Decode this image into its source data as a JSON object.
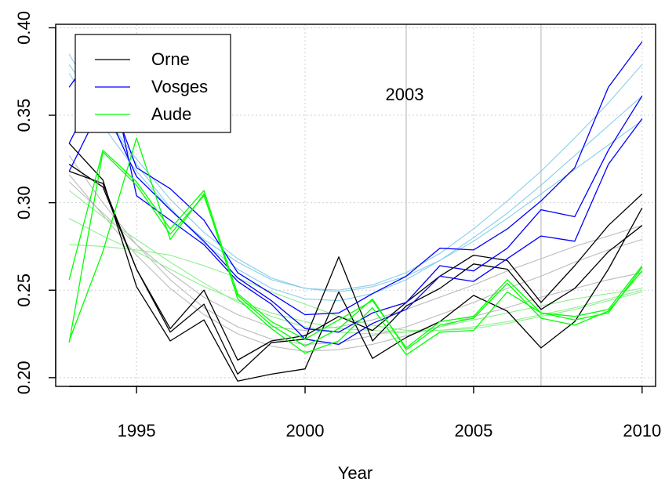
{
  "chart_data": {
    "type": "line",
    "title": "",
    "xlabel": "Year",
    "ylabel": "",
    "xlim": [
      1992.6,
      2010.4
    ],
    "ylim": [
      0.195,
      0.402
    ],
    "x": [
      1993,
      1994,
      1995,
      1996,
      1997,
      1998,
      1999,
      2000,
      2001,
      2002,
      2003,
      2004,
      2005,
      2006,
      2007,
      2008,
      2009,
      2010
    ],
    "x_ticks": [
      1995,
      2000,
      2005,
      2010
    ],
    "x_tick_labels": [
      "1995",
      "2000",
      "2005",
      "2010"
    ],
    "y_ticks": [
      0.2,
      0.25,
      0.3,
      0.35,
      0.4
    ],
    "y_tick_labels": [
      "0.20",
      "0.25",
      "0.30",
      "0.35",
      "0.40"
    ],
    "grid": true,
    "vertical_markers": [
      2003,
      2007
    ],
    "annotation": {
      "text": "2003",
      "x": 2003.5,
      "y": 0.354
    },
    "legend": {
      "placement": "top-left",
      "entries": [
        {
          "name": "Orne",
          "color": "#000000"
        },
        {
          "name": "Vosges",
          "color": "#0000ff"
        },
        {
          "name": "Aude",
          "color": "#00ff00"
        }
      ]
    },
    "series": [
      {
        "name": "Orne",
        "group": "Orne",
        "role": "observed",
        "color": "#000000",
        "values": [
          0.334,
          0.313,
          0.252,
          0.221,
          0.233,
          0.198,
          0.202,
          0.205,
          0.249,
          0.211,
          0.223,
          0.232,
          0.247,
          0.238,
          0.217,
          0.232,
          0.262,
          0.297
        ]
      },
      {
        "name": "Orne",
        "group": "Orne",
        "role": "observed",
        "color": "#000000",
        "values": [
          0.322,
          0.309,
          0.262,
          0.226,
          0.242,
          0.202,
          0.22,
          0.222,
          0.269,
          0.221,
          0.241,
          0.251,
          0.265,
          0.262,
          0.239,
          0.251,
          0.272,
          0.287
        ]
      },
      {
        "name": "Orne",
        "group": "Orne",
        "role": "observed",
        "color": "#000000",
        "values": [
          0.318,
          0.311,
          0.262,
          0.228,
          0.25,
          0.21,
          0.221,
          0.224,
          0.235,
          0.227,
          0.243,
          0.258,
          0.27,
          0.267,
          0.243,
          0.264,
          0.287,
          0.305
        ]
      },
      {
        "name": "Orne",
        "group": "Orne",
        "role": "trend",
        "color": "#bbbbbb",
        "values": [
          0.327,
          0.3,
          0.276,
          0.256,
          0.24,
          0.229,
          0.222,
          0.219,
          0.22,
          0.224,
          0.229,
          0.236,
          0.243,
          0.251,
          0.258,
          0.266,
          0.273,
          0.279
        ]
      },
      {
        "name": "Orne",
        "group": "Orne",
        "role": "trend",
        "color": "#bbbbbb",
        "values": [
          0.316,
          0.293,
          0.27,
          0.251,
          0.236,
          0.225,
          0.218,
          0.215,
          0.216,
          0.219,
          0.224,
          0.229,
          0.235,
          0.24,
          0.246,
          0.251,
          0.256,
          0.26
        ]
      },
      {
        "name": "Orne",
        "group": "Orne",
        "role": "trend",
        "color": "#bbbbbb",
        "values": [
          0.312,
          0.294,
          0.276,
          0.26,
          0.246,
          0.236,
          0.229,
          0.227,
          0.229,
          0.233,
          0.239,
          0.246,
          0.253,
          0.261,
          0.268,
          0.275,
          0.281,
          0.287
        ]
      },
      {
        "name": "Vosges",
        "group": "Vosges",
        "role": "observed",
        "color": "#0000ff",
        "values": [
          0.366,
          0.393,
          0.304,
          0.29,
          0.276,
          0.255,
          0.242,
          0.222,
          0.219,
          0.231,
          0.239,
          0.258,
          0.255,
          0.268,
          0.281,
          0.278,
          0.322,
          0.348
        ]
      },
      {
        "name": "Vosges",
        "group": "Vosges",
        "role": "observed",
        "color": "#0000ff",
        "values": [
          0.318,
          0.357,
          0.315,
          0.296,
          0.278,
          0.257,
          0.244,
          0.228,
          0.226,
          0.237,
          0.243,
          0.264,
          0.261,
          0.274,
          0.296,
          0.292,
          0.33,
          0.361
        ]
      },
      {
        "name": "Vosges",
        "group": "Vosges",
        "role": "observed",
        "color": "#0000ff",
        "values": [
          0.334,
          0.372,
          0.32,
          0.308,
          0.29,
          0.26,
          0.248,
          0.236,
          0.237,
          0.248,
          0.258,
          0.274,
          0.273,
          0.285,
          0.301,
          0.32,
          0.366,
          0.392
        ]
      },
      {
        "name": "Vosges",
        "group": "Vosges",
        "role": "trend",
        "color": "#87ceeb",
        "values": [
          0.385,
          0.351,
          0.322,
          0.297,
          0.277,
          0.262,
          0.251,
          0.245,
          0.244,
          0.248,
          0.256,
          0.267,
          0.28,
          0.294,
          0.31,
          0.327,
          0.344,
          0.361
        ]
      },
      {
        "name": "Vosges",
        "group": "Vosges",
        "role": "trend",
        "color": "#87ceeb",
        "values": [
          0.374,
          0.344,
          0.318,
          0.296,
          0.279,
          0.266,
          0.256,
          0.251,
          0.249,
          0.252,
          0.258,
          0.267,
          0.278,
          0.291,
          0.305,
          0.319,
          0.333,
          0.347
        ]
      },
      {
        "name": "Vosges",
        "group": "Vosges",
        "role": "trend",
        "color": "#87ceeb",
        "values": [
          0.379,
          0.351,
          0.325,
          0.302,
          0.283,
          0.268,
          0.257,
          0.251,
          0.25,
          0.253,
          0.26,
          0.271,
          0.285,
          0.301,
          0.318,
          0.337,
          0.357,
          0.379
        ]
      },
      {
        "name": "Aude",
        "group": "Aude",
        "role": "observed",
        "color": "#00ff00",
        "values": [
          0.221,
          0.272,
          0.337,
          0.279,
          0.305,
          0.245,
          0.228,
          0.214,
          0.221,
          0.24,
          0.213,
          0.226,
          0.227,
          0.249,
          0.237,
          0.233,
          0.237,
          0.263
        ]
      },
      {
        "name": "Aude",
        "group": "Aude",
        "role": "observed",
        "color": "#00ff00",
        "values": [
          0.256,
          0.33,
          0.312,
          0.285,
          0.307,
          0.247,
          0.23,
          0.218,
          0.228,
          0.245,
          0.216,
          0.23,
          0.234,
          0.254,
          0.234,
          0.23,
          0.238,
          0.261
        ]
      },
      {
        "name": "Aude",
        "group": "Aude",
        "role": "observed",
        "color": "#00ff00",
        "values": [
          0.22,
          0.329,
          0.31,
          0.282,
          0.304,
          0.248,
          0.232,
          0.222,
          0.233,
          0.244,
          0.217,
          0.232,
          0.235,
          0.256,
          0.237,
          0.235,
          0.239,
          0.264
        ]
      },
      {
        "name": "Aude",
        "group": "Aude",
        "role": "trend",
        "color": "#90ee90",
        "values": [
          0.291,
          0.281,
          0.272,
          0.262,
          0.252,
          0.244,
          0.237,
          0.232,
          0.228,
          0.227,
          0.226,
          0.227,
          0.229,
          0.232,
          0.236,
          0.24,
          0.245,
          0.25
        ]
      },
      {
        "name": "Aude",
        "group": "Aude",
        "role": "trend",
        "color": "#90ee90",
        "values": [
          0.276,
          0.275,
          0.273,
          0.27,
          0.264,
          0.257,
          0.249,
          0.242,
          0.235,
          0.23,
          0.227,
          0.227,
          0.228,
          0.231,
          0.235,
          0.239,
          0.244,
          0.249
        ]
      },
      {
        "name": "Aude",
        "group": "Aude",
        "role": "trend",
        "color": "#90ee90",
        "values": [
          0.307,
          0.292,
          0.279,
          0.266,
          0.254,
          0.243,
          0.235,
          0.229,
          0.226,
          0.225,
          0.226,
          0.229,
          0.233,
          0.237,
          0.241,
          0.245,
          0.248,
          0.251
        ]
      }
    ]
  }
}
